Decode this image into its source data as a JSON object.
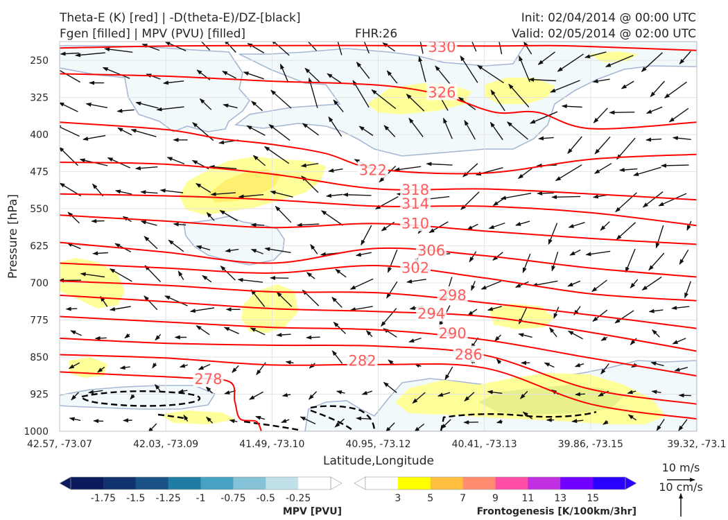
{
  "header": {
    "title_left_1": "Theta-E (K) [red] | -D(theta-E)/DZ-[black]",
    "title_left_2": "Fgen [filled] | MPV (PVU) [filled]",
    "fhr": "FHR:26",
    "init": "Init: 02/04/2014 @ 00:00 UTC",
    "valid": "Valid: 02/05/2014 @ 02:00 UTC"
  },
  "chart_data": {
    "type": "cross-section",
    "xlabel": "Latitude,Longitude",
    "ylabel": "Pressure [hPa]",
    "x_ticks": [
      "42.57, -73.07",
      "42.03, -73.09",
      "41.49, -73.10",
      "40.95, -73.12",
      "40.41, -73.13",
      "39.86, -73.15",
      "39.32, -73.1"
    ],
    "y_ticks": [
      250,
      325,
      400,
      475,
      550,
      625,
      700,
      775,
      850,
      925,
      1000
    ],
    "ylim": [
      1000,
      212
    ],
    "xlim": [
      0,
      6
    ],
    "grid": true,
    "theta_e_contours": [
      {
        "level": 330,
        "points": [
          [
            0,
            225
          ],
          [
            1,
            221
          ],
          [
            2,
            220
          ],
          [
            3,
            220
          ],
          [
            4,
            221
          ],
          [
            4.6,
            220
          ],
          [
            5,
            222
          ],
          [
            6,
            230
          ]
        ],
        "label_at": [
          3.6,
          223
        ]
      },
      {
        "level": 326,
        "points": [
          [
            0,
            277
          ],
          [
            1,
            282
          ],
          [
            2,
            292
          ],
          [
            3,
            300
          ],
          [
            3.6,
            320
          ],
          [
            4.1,
            355
          ],
          [
            4.5,
            355
          ],
          [
            5,
            388
          ],
          [
            6,
            375
          ]
        ],
        "label_at": [
          3.6,
          315
        ]
      },
      {
        "level": 322,
        "points": [
          [
            0,
            375
          ],
          [
            1,
            390
          ],
          [
            1.5,
            408
          ],
          [
            2,
            420
          ],
          [
            2.5,
            438
          ],
          [
            3,
            470
          ],
          [
            4,
            478
          ],
          [
            5,
            450
          ],
          [
            6,
            440
          ]
        ],
        "label_at": [
          2.95,
          472
        ]
      },
      {
        "level": 318,
        "points": [
          [
            0,
            456
          ],
          [
            1,
            460
          ],
          [
            2,
            480
          ],
          [
            3,
            510
          ],
          [
            4,
            510
          ],
          [
            5,
            520
          ],
          [
            6,
            532
          ]
        ],
        "label_at": [
          3.35,
          512
        ]
      },
      {
        "level": 314,
        "points": [
          [
            0,
            520
          ],
          [
            1,
            524
          ],
          [
            2,
            532
          ],
          [
            3,
            545
          ],
          [
            4,
            545
          ],
          [
            5,
            558
          ],
          [
            6,
            584
          ]
        ],
        "label_at": [
          3.35,
          540
        ]
      },
      {
        "level": 310,
        "points": [
          [
            0,
            563
          ],
          [
            1,
            575
          ],
          [
            2,
            588
          ],
          [
            3,
            580
          ],
          [
            4,
            595
          ],
          [
            5,
            610
          ],
          [
            6,
            622
          ]
        ],
        "label_at": [
          3.35,
          580
        ]
      },
      {
        "level": 306,
        "points": [
          [
            0,
            618
          ],
          [
            1,
            638
          ],
          [
            2,
            660
          ],
          [
            3,
            630
          ],
          [
            4,
            645
          ],
          [
            5,
            670
          ],
          [
            6,
            688
          ]
        ],
        "label_at": [
          3.5,
          635
        ]
      },
      {
        "level": 302,
        "points": [
          [
            0,
            660
          ],
          [
            1,
            670
          ],
          [
            2,
            680
          ],
          [
            3,
            665
          ],
          [
            4,
            690
          ],
          [
            5,
            722
          ],
          [
            6,
            736
          ]
        ],
        "label_at": [
          3.35,
          670
        ]
      },
      {
        "level": 298,
        "points": [
          [
            0,
            696
          ],
          [
            1,
            705
          ],
          [
            2,
            718
          ],
          [
            3,
            720
          ],
          [
            4,
            740
          ],
          [
            5,
            765
          ],
          [
            6,
            792
          ]
        ],
        "label_at": [
          3.7,
          725
        ]
      },
      {
        "level": 294,
        "points": [
          [
            0,
            725
          ],
          [
            1,
            738
          ],
          [
            2,
            752
          ],
          [
            3,
            758
          ],
          [
            4,
            768
          ],
          [
            5,
            800
          ],
          [
            6,
            838
          ]
        ],
        "label_at": [
          3.5,
          762
        ]
      },
      {
        "level": 290,
        "points": [
          [
            0,
            768
          ],
          [
            1,
            779
          ],
          [
            2,
            790
          ],
          [
            3,
            795
          ],
          [
            4,
            815
          ],
          [
            5,
            852
          ],
          [
            6,
            888
          ]
        ],
        "label_at": [
          3.7,
          802
        ]
      },
      {
        "level": 286,
        "points": [
          [
            0,
            812
          ],
          [
            1,
            822
          ],
          [
            2,
            826
          ],
          [
            3,
            828
          ],
          [
            4,
            846
          ],
          [
            5,
            915
          ],
          [
            6,
            945
          ]
        ],
        "label_at": [
          3.85,
          845
        ]
      },
      {
        "level": 282,
        "points": [
          [
            0,
            845
          ],
          [
            1,
            852
          ],
          [
            2,
            866
          ],
          [
            3,
            865
          ],
          [
            4,
            872
          ],
          [
            5,
            945
          ],
          [
            6,
            975
          ]
        ],
        "label_at": [
          2.85,
          858
        ]
      },
      {
        "level": 278,
        "points": [
          [
            0,
            880
          ],
          [
            0.5,
            885
          ],
          [
            1.2,
            892
          ],
          [
            1.6,
            900
          ],
          [
            1.65,
            940
          ],
          [
            1.7,
            975
          ],
          [
            1.85,
            980
          ],
          [
            1.9,
            1000
          ]
        ],
        "label_at": [
          1.4,
          895
        ]
      }
    ],
    "mpv_levels": [
      -1.75,
      -1.5,
      -1.25,
      -1.0,
      -0.75,
      -0.5,
      -0.25
    ],
    "mpv_colorbar_label": "MPV [PVU]",
    "fgen_levels": [
      3,
      5,
      7,
      9,
      11,
      13,
      15
    ],
    "fgen_colorbar_label": "Frontogenesis [K/100km/3hr]",
    "reference_vectors": [
      "10 m/s",
      "10 cm/s"
    ]
  },
  "colors": {
    "theta_e": "#ff0000",
    "theta_e_label": "#ff5a5a",
    "mpv_fill": "#f2f9fa",
    "mpv_edge": "#a6b6d3",
    "fgen_light": "#ffff99",
    "fgen_mid": "#ffef70",
    "dtheta_dz": "#000000",
    "mpv_colorbar": [
      "#0a1a5c",
      "#11336e",
      "#1a5186",
      "#1f7da3",
      "#46a1c2",
      "#86c2d7",
      "#c1e1ea",
      "#ffffff"
    ],
    "fgen_colorbar": [
      "#ffffff",
      "#ffff00",
      "#ffc040",
      "#ff8c6e",
      "#ff4da6",
      "#c030e0",
      "#7000ff",
      "#2a00ff"
    ]
  }
}
